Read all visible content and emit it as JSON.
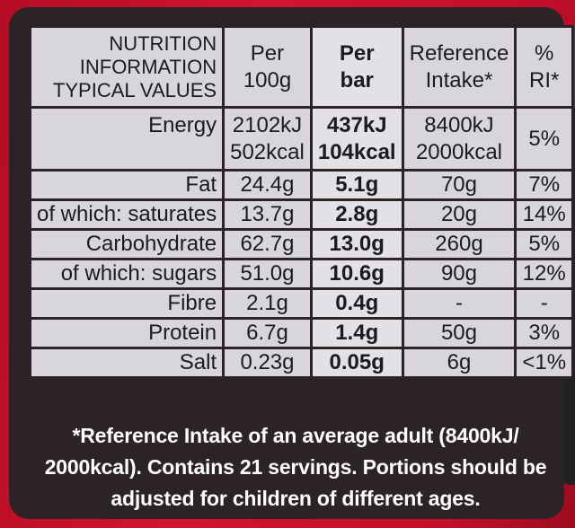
{
  "header": {
    "title_lines": [
      "NUTRITION",
      "INFORMATION",
      "TYPICAL VALUES"
    ],
    "per100g": [
      "Per",
      "100g"
    ],
    "perbar": [
      "Per",
      "bar"
    ],
    "ri": [
      "Reference",
      "Intake*"
    ],
    "pct": [
      "%",
      "RI*"
    ]
  },
  "rows": {
    "energy": {
      "label": "Energy",
      "per100g": [
        "2102kJ",
        "502kcal"
      ],
      "perbar": [
        "437kJ",
        "104kcal"
      ],
      "ri": [
        "8400kJ",
        "2000kcal"
      ],
      "pct": "5%"
    },
    "fat": {
      "label": "Fat",
      "per100g": "24.4g",
      "perbar": "5.1g",
      "ri": "70g",
      "pct": "7%"
    },
    "saturates": {
      "label": "of which: saturates",
      "per100g": "13.7g",
      "perbar": "2.8g",
      "ri": "20g",
      "pct": "14%"
    },
    "carbohydrate": {
      "label": "Carbohydrate",
      "per100g": "62.7g",
      "perbar": "13.0g",
      "ri": "260g",
      "pct": "5%"
    },
    "sugars": {
      "label": "of which: sugars",
      "per100g": "51.0g",
      "perbar": "10.6g",
      "ri": "90g",
      "pct": "12%"
    },
    "fibre": {
      "label": "Fibre",
      "per100g": "2.1g",
      "perbar": "0.4g",
      "ri": "-",
      "pct": "-"
    },
    "protein": {
      "label": "Protein",
      "per100g": "6.7g",
      "perbar": "1.4g",
      "ri": "50g",
      "pct": "3%"
    },
    "salt": {
      "label": "Salt",
      "per100g": "0.23g",
      "perbar": "0.05g",
      "ri": "6g",
      "pct": "<1%"
    }
  },
  "footnote": [
    "*Reference Intake of an average adult (8400kJ/",
    "2000kcal). Contains 21 servings. Portions should be",
    "adjusted for children of different ages."
  ]
}
